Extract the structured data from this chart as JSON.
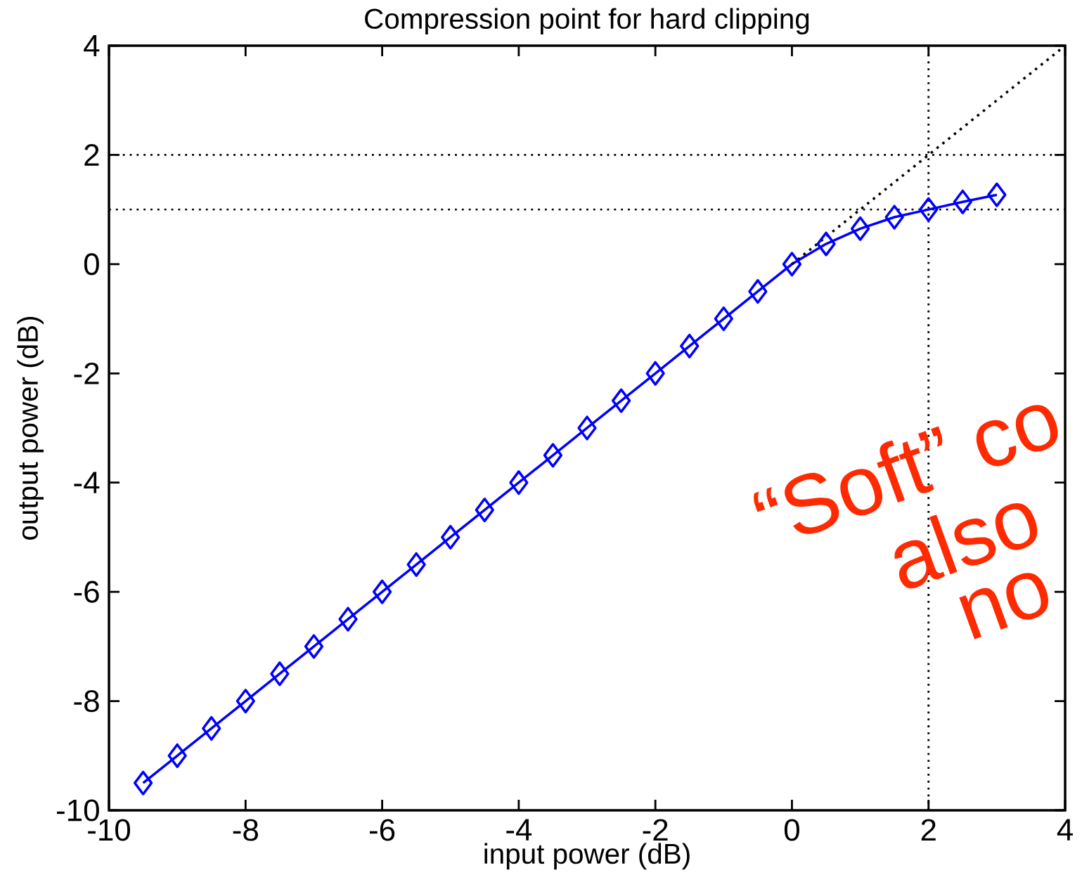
{
  "chart_data": {
    "type": "line",
    "title": "Compression point for hard clipping",
    "xlabel": "input power (dB)",
    "ylabel": "output power (dB)",
    "series": [
      {
        "color": "#0000ff",
        "marker": "diamond",
        "line_style": "solid",
        "x": [
          -9.5,
          -9,
          -8.5,
          -8,
          -7.5,
          -7,
          -6.5,
          -6,
          -5.5,
          -5,
          -4.5,
          -4,
          -3.5,
          -3,
          -2.5,
          -2,
          -1.5,
          -1,
          -0.5,
          0,
          0.5,
          1,
          1.5,
          2,
          2.5,
          3
        ],
        "values": [
          -9.5,
          -9,
          -8.5,
          -8,
          -7.5,
          -7,
          -6.5,
          -6,
          -5.5,
          -5,
          -4.5,
          -4,
          -3.5,
          -3,
          -2.5,
          -2,
          -1.5,
          -1,
          -0.5,
          0,
          0.37,
          0.65,
          0.86,
          1.0,
          1.14,
          1.27
        ]
      },
      {
        "color": "#000000",
        "marker": "none",
        "line_style": "dotted",
        "x": [
          0,
          4
        ],
        "values": [
          0,
          4
        ]
      }
    ],
    "xlim": [
      -10,
      4
    ],
    "ylim": [
      -10,
      4
    ],
    "xticks": [
      -10,
      -8,
      -6,
      -4,
      -2,
      0,
      2,
      4
    ],
    "yticks": [
      -10,
      -8,
      -6,
      -4,
      -2,
      0,
      2,
      4
    ],
    "ref_lines": [
      {
        "axis": "y",
        "value": 2,
        "color": "#000000",
        "line_style": "dotted"
      },
      {
        "axis": "y",
        "value": 1,
        "color": "#000000",
        "line_style": "dotted"
      },
      {
        "axis": "x",
        "value": 2,
        "color": "#000000",
        "line_style": "dotted"
      }
    ],
    "grid": false,
    "annotations": [
      "“Soft” co",
      "also",
      "no"
    ]
  }
}
